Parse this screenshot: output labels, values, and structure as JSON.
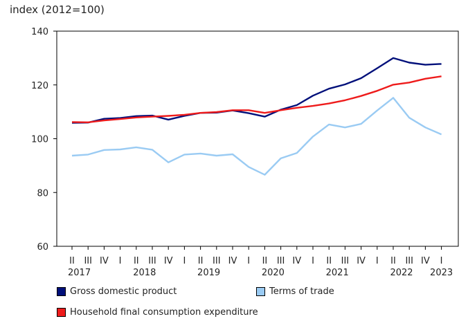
{
  "chart_data": {
    "type": "line",
    "ylabel": "index (2012=100)",
    "ylim": [
      60,
      140
    ],
    "yticks": [
      60,
      80,
      100,
      120,
      140
    ],
    "quarter_labels": [
      "II",
      "III",
      "IV",
      "I",
      "II",
      "III",
      "IV",
      "I",
      "II",
      "III",
      "IV",
      "I",
      "II",
      "III",
      "IV",
      "I",
      "II",
      "III",
      "IV",
      "I",
      "II",
      "III",
      "IV",
      "I"
    ],
    "year_labels": [
      {
        "text": "2017",
        "at_index": 0
      },
      {
        "text": "2018",
        "at_index": 4
      },
      {
        "text": "2019",
        "at_index": 8
      },
      {
        "text": "2020",
        "at_index": 12
      },
      {
        "text": "2021",
        "at_index": 16
      },
      {
        "text": "2022",
        "at_index": 20
      },
      {
        "text": "2023",
        "at_index": 23
      }
    ],
    "series": [
      {
        "name": "Gross domestic product",
        "color": "#000f7a",
        "values": [
          105.9,
          106.0,
          107.4,
          107.7,
          108.4,
          108.6,
          107.1,
          108.5,
          109.6,
          109.7,
          110.5,
          109.5,
          108.2,
          110.8,
          112.5,
          116.0,
          118.6,
          120.2,
          122.5,
          126.2,
          130.0,
          128.3,
          127.5,
          127.8
        ]
      },
      {
        "name": "Terms of trade",
        "color": "#9acbf3",
        "values": [
          93.7,
          94.1,
          95.8,
          96.0,
          96.8,
          95.9,
          91.2,
          94.1,
          94.5,
          93.7,
          94.2,
          89.5,
          86.6,
          92.7,
          94.7,
          100.8,
          105.3,
          104.2,
          105.5,
          110.5,
          115.2,
          107.8,
          104.2,
          101.6
        ]
      },
      {
        "name": "Household final consumption expenditure",
        "color": "#ee1b1b",
        "values": [
          106.2,
          106.1,
          106.8,
          107.3,
          107.9,
          108.2,
          108.5,
          108.9,
          109.6,
          109.9,
          110.6,
          110.6,
          109.6,
          110.6,
          111.5,
          112.2,
          113.1,
          114.3,
          115.9,
          117.8,
          120.1,
          120.9,
          122.3,
          123.2
        ]
      }
    ]
  },
  "legend": {
    "gdp": "Gross domestic product",
    "tot": "Terms of trade",
    "hfce": "Household final consumption expenditure"
  }
}
